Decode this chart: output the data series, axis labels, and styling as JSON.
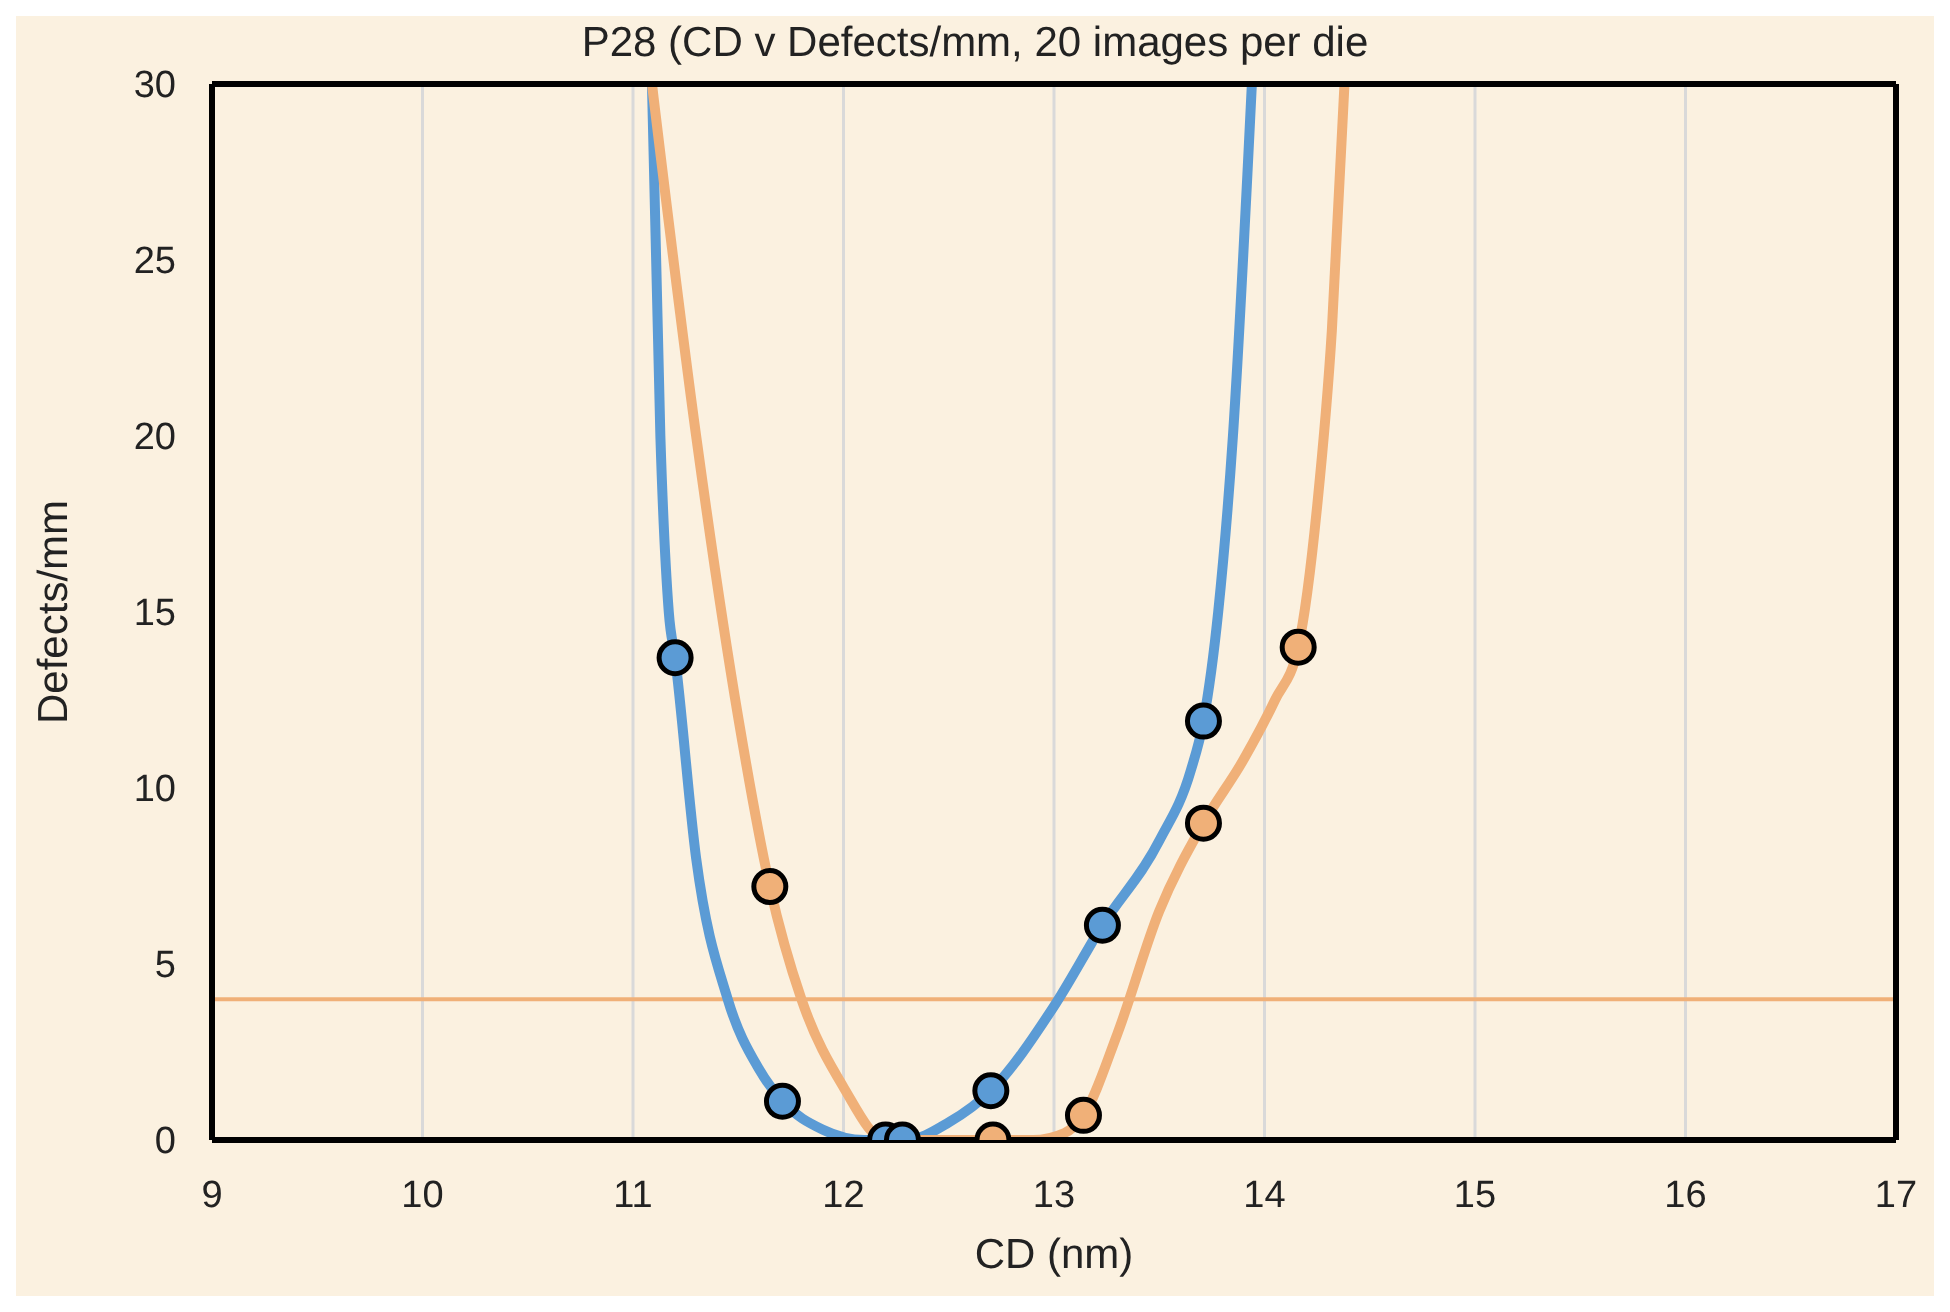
{
  "chart_data": {
    "type": "scatter",
    "title": "P28 (CD v Defects/mm, 20 images per die",
    "xlabel": "CD (nm)",
    "ylabel": "Defects/mm",
    "xlim": [
      9,
      17
    ],
    "xticks": [
      9,
      10,
      11,
      12,
      13,
      14,
      15,
      16,
      17
    ],
    "ylim": [
      0,
      30
    ],
    "yticks": [
      0,
      5,
      10,
      15,
      20,
      25,
      30
    ],
    "grid": "x",
    "ref_lines": [
      {
        "axis": "y",
        "value": 4,
        "color": "#f0b078"
      }
    ],
    "series": [
      {
        "type": "line",
        "color": "#5b9bd5",
        "x": [
          11.09,
          11.13,
          11.17,
          11.2,
          11.3,
          11.45,
          11.6,
          11.71,
          11.9,
          12.1,
          12.3,
          12.5,
          12.7,
          13.0,
          13.23,
          13.5,
          13.65,
          13.71,
          13.78,
          13.85,
          13.94
        ],
        "values": [
          30,
          20,
          15,
          13.7,
          8,
          4,
          2,
          1.1,
          0.3,
          0,
          0,
          0.5,
          1.4,
          3.8,
          6.1,
          8.5,
          10.5,
          11.9,
          15,
          20,
          30
        ]
      },
      {
        "type": "line",
        "color": "#f0b078",
        "x": [
          11.09,
          11.3,
          11.5,
          11.65,
          11.8,
          12.0,
          12.2,
          12.5,
          12.71,
          12.9,
          13.05,
          13.14,
          13.3,
          13.5,
          13.71,
          13.9,
          14.05,
          14.16,
          14.25,
          14.32,
          14.38
        ],
        "values": [
          30,
          20,
          12,
          7.2,
          4,
          1.5,
          0,
          0,
          0,
          0,
          0.2,
          0.7,
          3,
          6.5,
          9.0,
          10.8,
          12.5,
          14.0,
          18,
          23,
          30
        ]
      },
      {
        "marker": "circle",
        "color": "#5b9bd5",
        "x": [
          11.2,
          11.71,
          12.2,
          12.28,
          12.7,
          13.23,
          13.71
        ],
        "values": [
          13.7,
          1.1,
          0,
          0,
          1.4,
          6.1,
          11.9
        ]
      },
      {
        "marker": "circle",
        "color": "#f0b078",
        "x": [
          11.65,
          12.71,
          13.14,
          13.71,
          14.16
        ],
        "values": [
          7.2,
          0,
          0.7,
          9.0,
          14.0
        ]
      }
    ]
  }
}
